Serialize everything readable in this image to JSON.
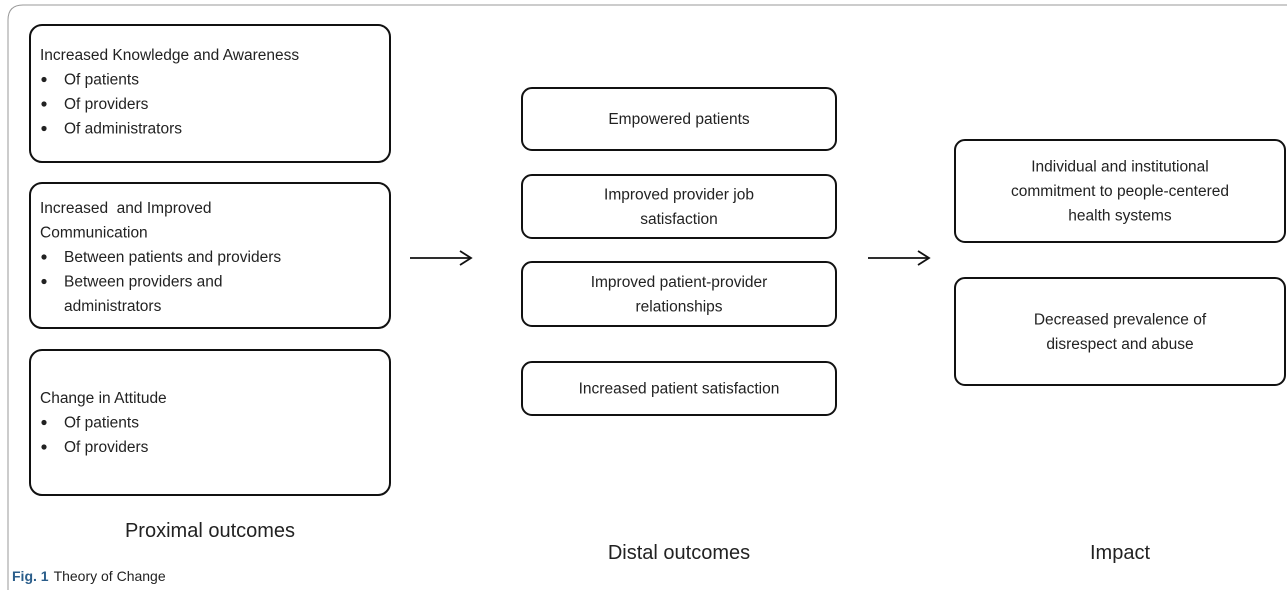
{
  "columns": [
    {
      "label": "Proximal outcomes",
      "boxes": [
        {
          "title": [
            "Increased Knowledge and Awareness"
          ],
          "bullets": [
            [
              "Of patients"
            ],
            [
              "Of providers"
            ],
            [
              "Of administrators"
            ]
          ]
        },
        {
          "title": [
            "Increased  and Improved",
            "Communication"
          ],
          "bullets": [
            [
              "Between patients and providers"
            ],
            [
              "Between providers and",
              "administrators"
            ]
          ]
        },
        {
          "title": [
            "Change in Attitude"
          ],
          "bullets": [
            [
              "Of patients"
            ],
            [
              "Of providers"
            ]
          ]
        }
      ]
    },
    {
      "label": "Distal outcomes",
      "boxes": [
        {
          "text": [
            "Empowered patients"
          ]
        },
        {
          "text": [
            "Improved provider job",
            "satisfaction"
          ]
        },
        {
          "text": [
            "Improved patient-provider",
            "relationships"
          ]
        },
        {
          "text": [
            "Increased patient satisfaction"
          ]
        }
      ]
    },
    {
      "label": "Impact",
      "boxes": [
        {
          "text": [
            "Individual and institutional",
            "commitment to people-centered",
            "health systems"
          ]
        },
        {
          "text": [
            "Decreased prevalence of",
            "disrespect and abuse"
          ]
        }
      ]
    }
  ],
  "caption": {
    "label": "Fig. 1",
    "text": "Theory of Change"
  }
}
